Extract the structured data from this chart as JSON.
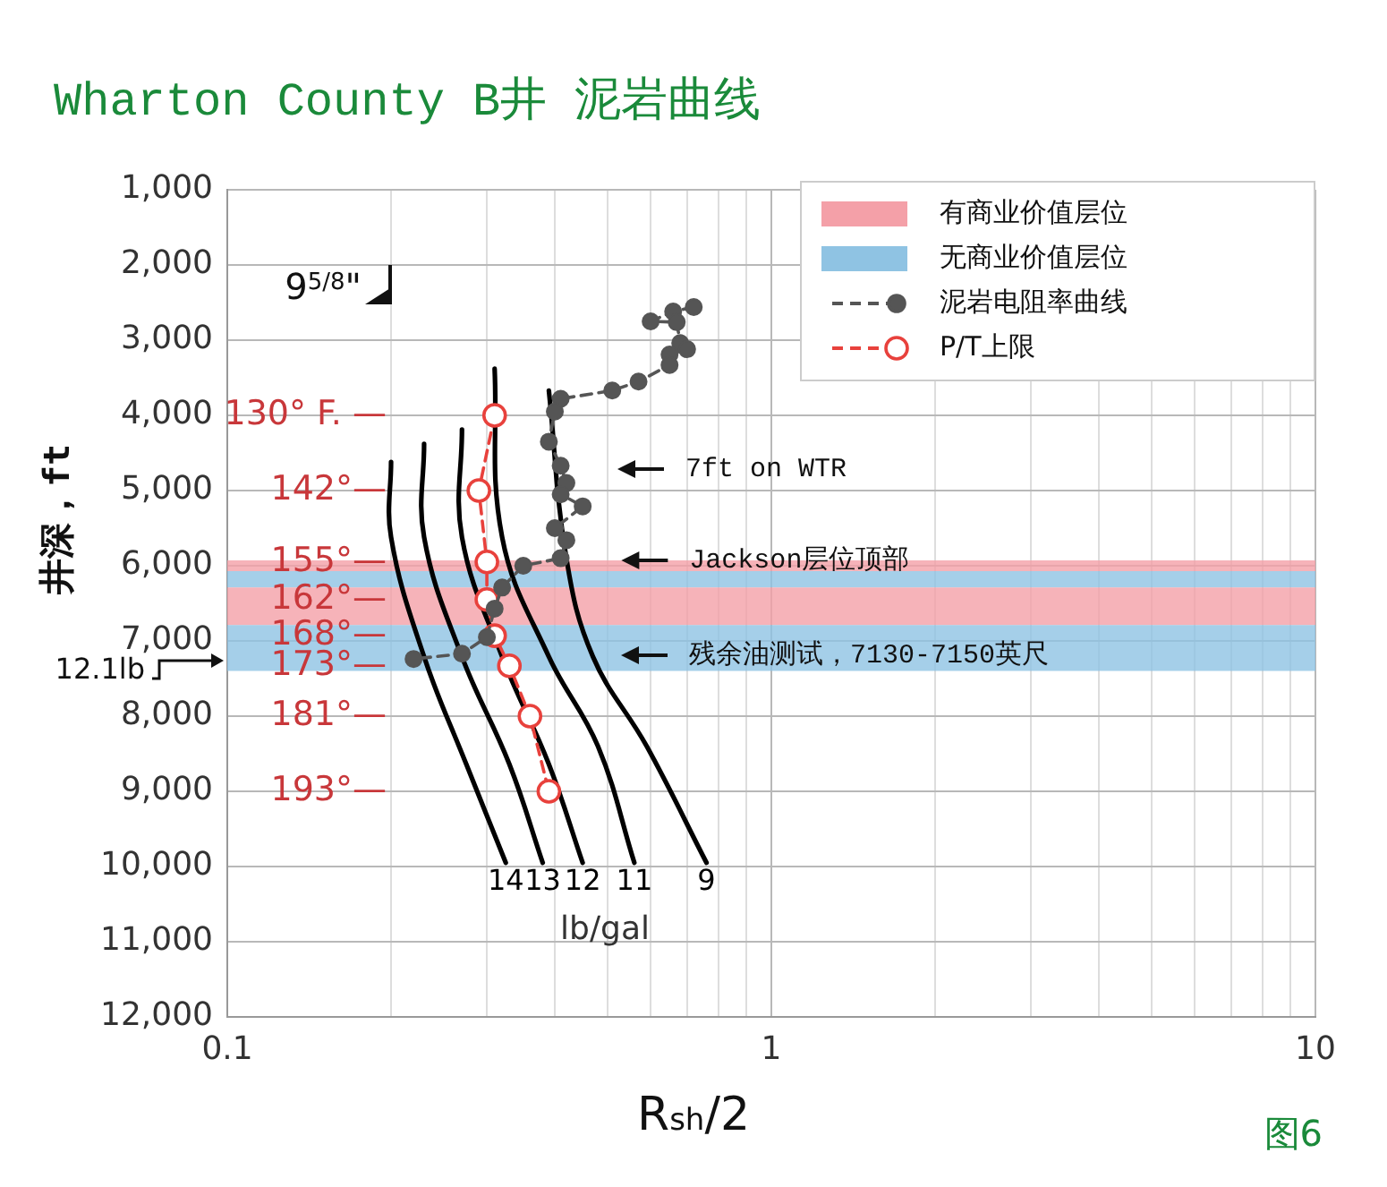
{
  "chart_data": {
    "type": "line",
    "title": "Wharton County B井 泥岩曲线",
    "xlabel": "R$_{sh}$/2",
    "ylabel": "井深，ft",
    "log": "x",
    "grid": true,
    "legend": "top right",
    "xlim": [
      0.1,
      10
    ],
    "xticks": [
      0.1,
      {
        "value": 0.2,
        "label": null
      },
      {
        "value": 0.3,
        "label": null
      },
      {
        "value": 0.4,
        "label": null
      },
      {
        "value": 0.5,
        "label": null
      },
      {
        "value": 0.6,
        "label": null
      },
      {
        "value": 0.7,
        "label": null
      },
      {
        "value": 0.8,
        "label": null
      },
      {
        "value": 0.9,
        "label": null
      },
      1,
      {
        "value": 2,
        "label": null
      },
      {
        "value": 3,
        "label": null
      },
      {
        "value": 4,
        "label": null
      },
      {
        "value": 5,
        "label": null
      },
      {
        "value": 6,
        "label": null
      },
      {
        "value": 7,
        "label": null
      },
      {
        "value": 8,
        "label": null
      },
      {
        "value": 9,
        "label": null
      },
      10
    ],
    "ylim": [
      12000,
      1000
    ],
    "yticks": [
      {
        "value": 1000,
        "label": "1,000"
      },
      {
        "value": 2000,
        "label": "2,000"
      },
      {
        "value": 3000,
        "label": "3,000"
      },
      {
        "value": 4000,
        "label": "4,000"
      },
      {
        "value": 5000,
        "label": "5,000"
      },
      {
        "value": 6000,
        "label": "6,000"
      },
      {
        "value": 7000,
        "label": "7,000"
      },
      {
        "value": 8000,
        "label": "8,000"
      },
      {
        "value": 9000,
        "label": "9,000"
      },
      {
        "value": 10000,
        "label": "10,000"
      },
      {
        "value": 11000,
        "label": "11,000"
      },
      {
        "value": 12000,
        "label": "12,000"
      }
    ],
    "bands": [
      {
        "axis": "y",
        "from": 5930,
        "to": 6070,
        "label": "有商业价值层位",
        "color": "#f4a0a8"
      },
      {
        "axis": "y",
        "from": 6070,
        "to": 6290,
        "label": "无商业价值层位",
        "color": "#8fc3e3"
      },
      {
        "axis": "y",
        "from": 6290,
        "to": 6790,
        "color": "#f4a0a8"
      },
      {
        "axis": "y",
        "from": 6790,
        "to": 7400,
        "color": "#8fc3e3"
      }
    ],
    "series": [
      {
        "name": "泥岩电阻率曲线",
        "type": "line",
        "color": "#555555",
        "marker": "circle",
        "line_style": "dashed",
        "x": [
          0.72,
          0.66,
          0.6,
          0.67,
          0.68,
          0.7,
          0.65,
          0.65,
          0.57,
          0.51,
          0.41,
          0.4,
          0.39,
          0.41,
          0.42,
          0.41,
          0.45,
          0.4,
          0.42,
          0.41,
          0.35,
          0.32,
          0.31,
          0.3,
          0.27,
          0.22
        ],
        "values": [
          2560,
          2620,
          2750,
          2760,
          3040,
          3120,
          3190,
          3330,
          3550,
          3670,
          3780,
          3950,
          4350,
          4670,
          4900,
          5050,
          5210,
          5500,
          5660,
          5900,
          6000,
          6290,
          6570,
          6950,
          7170,
          7240
        ]
      },
      {
        "name": "P/T上限",
        "type": "line",
        "color": "#e8413c",
        "marker": "circle",
        "line_style": "dashed",
        "x": [
          0.31,
          0.29,
          0.3,
          0.3,
          0.31,
          0.33,
          0.36,
          0.39
        ],
        "values": [
          4000,
          5000,
          5950,
          6450,
          6930,
          7330,
          8000,
          9000
        ]
      },
      {
        "name": "14",
        "type": "line",
        "color": "#000000",
        "marker": "none",
        "line_style": "solid",
        "x": [
          0.2,
          0.2,
          0.23,
          0.275,
          0.325
        ],
        "values": [
          4620,
          5620,
          7210,
          8640,
          9950
        ]
      },
      {
        "name": "13",
        "type": "line",
        "color": "#000000",
        "marker": "none",
        "line_style": "solid",
        "x": [
          0.23,
          0.23,
          0.27,
          0.33,
          0.38
        ],
        "values": [
          4380,
          5620,
          7210,
          8640,
          9950
        ]
      },
      {
        "name": "12",
        "type": "line",
        "color": "#000000",
        "marker": "none",
        "line_style": "solid",
        "x": [
          0.27,
          0.27,
          0.32,
          0.39,
          0.45
        ],
        "values": [
          4190,
          5620,
          7210,
          8640,
          9950
        ]
      },
      {
        "name": "11",
        "type": "line",
        "color": "#000000",
        "marker": "none",
        "line_style": "solid",
        "x": [
          0.31,
          0.32,
          0.39,
          0.48,
          0.56
        ],
        "values": [
          3380,
          5620,
          7210,
          8400,
          9950
        ]
      },
      {
        "name": "9",
        "type": "line",
        "color": "#000000",
        "marker": "none",
        "line_style": "solid",
        "x": [
          0.39,
          0.42,
          0.47,
          0.59,
          0.76
        ],
        "values": [
          3670,
          5900,
          7210,
          8400,
          9950
        ]
      }
    ],
    "annotations": [
      "130° F. —",
      "142°—",
      "155°—",
      "162°—",
      "168°—",
      "173°—",
      "181°—",
      "193°—",
      "9$^{5/8}$\"",
      "12.1lb",
      "7ft on WTR",
      {
        "text": "Jackson层位顶部",
        "x": 0.53,
        "y": 5930
      },
      "残余油测试，7130-7150英尺",
      "lb/gal",
      "图6"
    ]
  }
}
